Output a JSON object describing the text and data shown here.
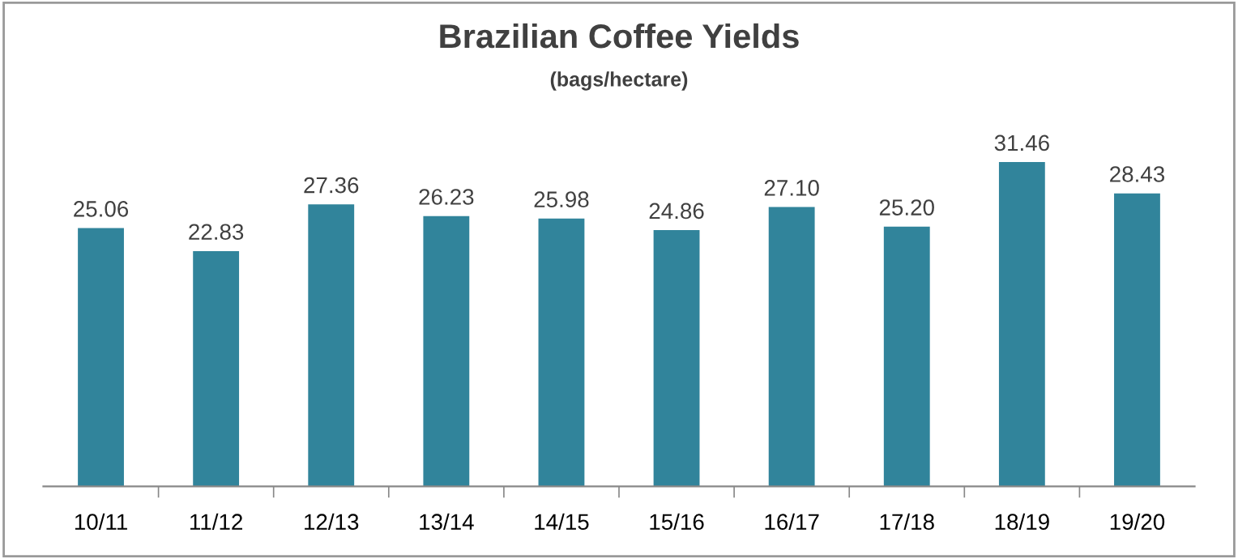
{
  "chart_data": {
    "type": "bar",
    "title": "Brazilian Coffee Yields",
    "subtitle": "(bags/hectare)",
    "categories": [
      "10/11",
      "11/12",
      "12/13",
      "13/14",
      "14/15",
      "15/16",
      "16/17",
      "17/18",
      "18/19",
      "19/20"
    ],
    "values": [
      25.06,
      22.83,
      27.36,
      26.23,
      25.98,
      24.86,
      27.1,
      25.2,
      31.46,
      28.43
    ],
    "value_labels": [
      "25.06",
      "22.83",
      "27.36",
      "26.23",
      "25.98",
      "24.86",
      "27.10",
      "25.20",
      "31.46",
      "28.43"
    ],
    "color": "#31849b",
    "tick_labels": "x",
    "grid": false,
    "legend": false
  }
}
